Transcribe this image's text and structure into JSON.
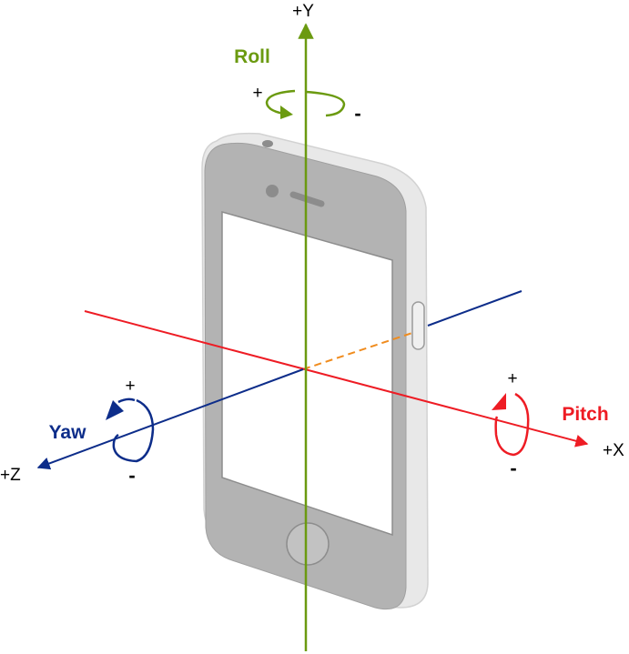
{
  "colors": {
    "y_axis": "#6b9a10",
    "x_axis": "#ee1c24",
    "z_axis": "#0d2d8a",
    "z_hidden": "#f08c1e",
    "phone_frame": "#bdbdbd",
    "phone_edge": "#e6e6e6",
    "screen": "#ffffff"
  },
  "axes": {
    "y_label": "+Y",
    "x_label": "+X",
    "z_label": "+Z"
  },
  "rotations": {
    "roll": {
      "label": "Roll",
      "plus": "+",
      "minus": "-"
    },
    "pitch": {
      "label": "Pitch",
      "plus": "+",
      "minus": "-"
    },
    "yaw": {
      "label": "Yaw",
      "plus": "+",
      "minus": "-"
    }
  },
  "icons": [
    "phone-icon",
    "home-button-icon",
    "camera-icon",
    "speaker-icon",
    "side-button-icon"
  ]
}
